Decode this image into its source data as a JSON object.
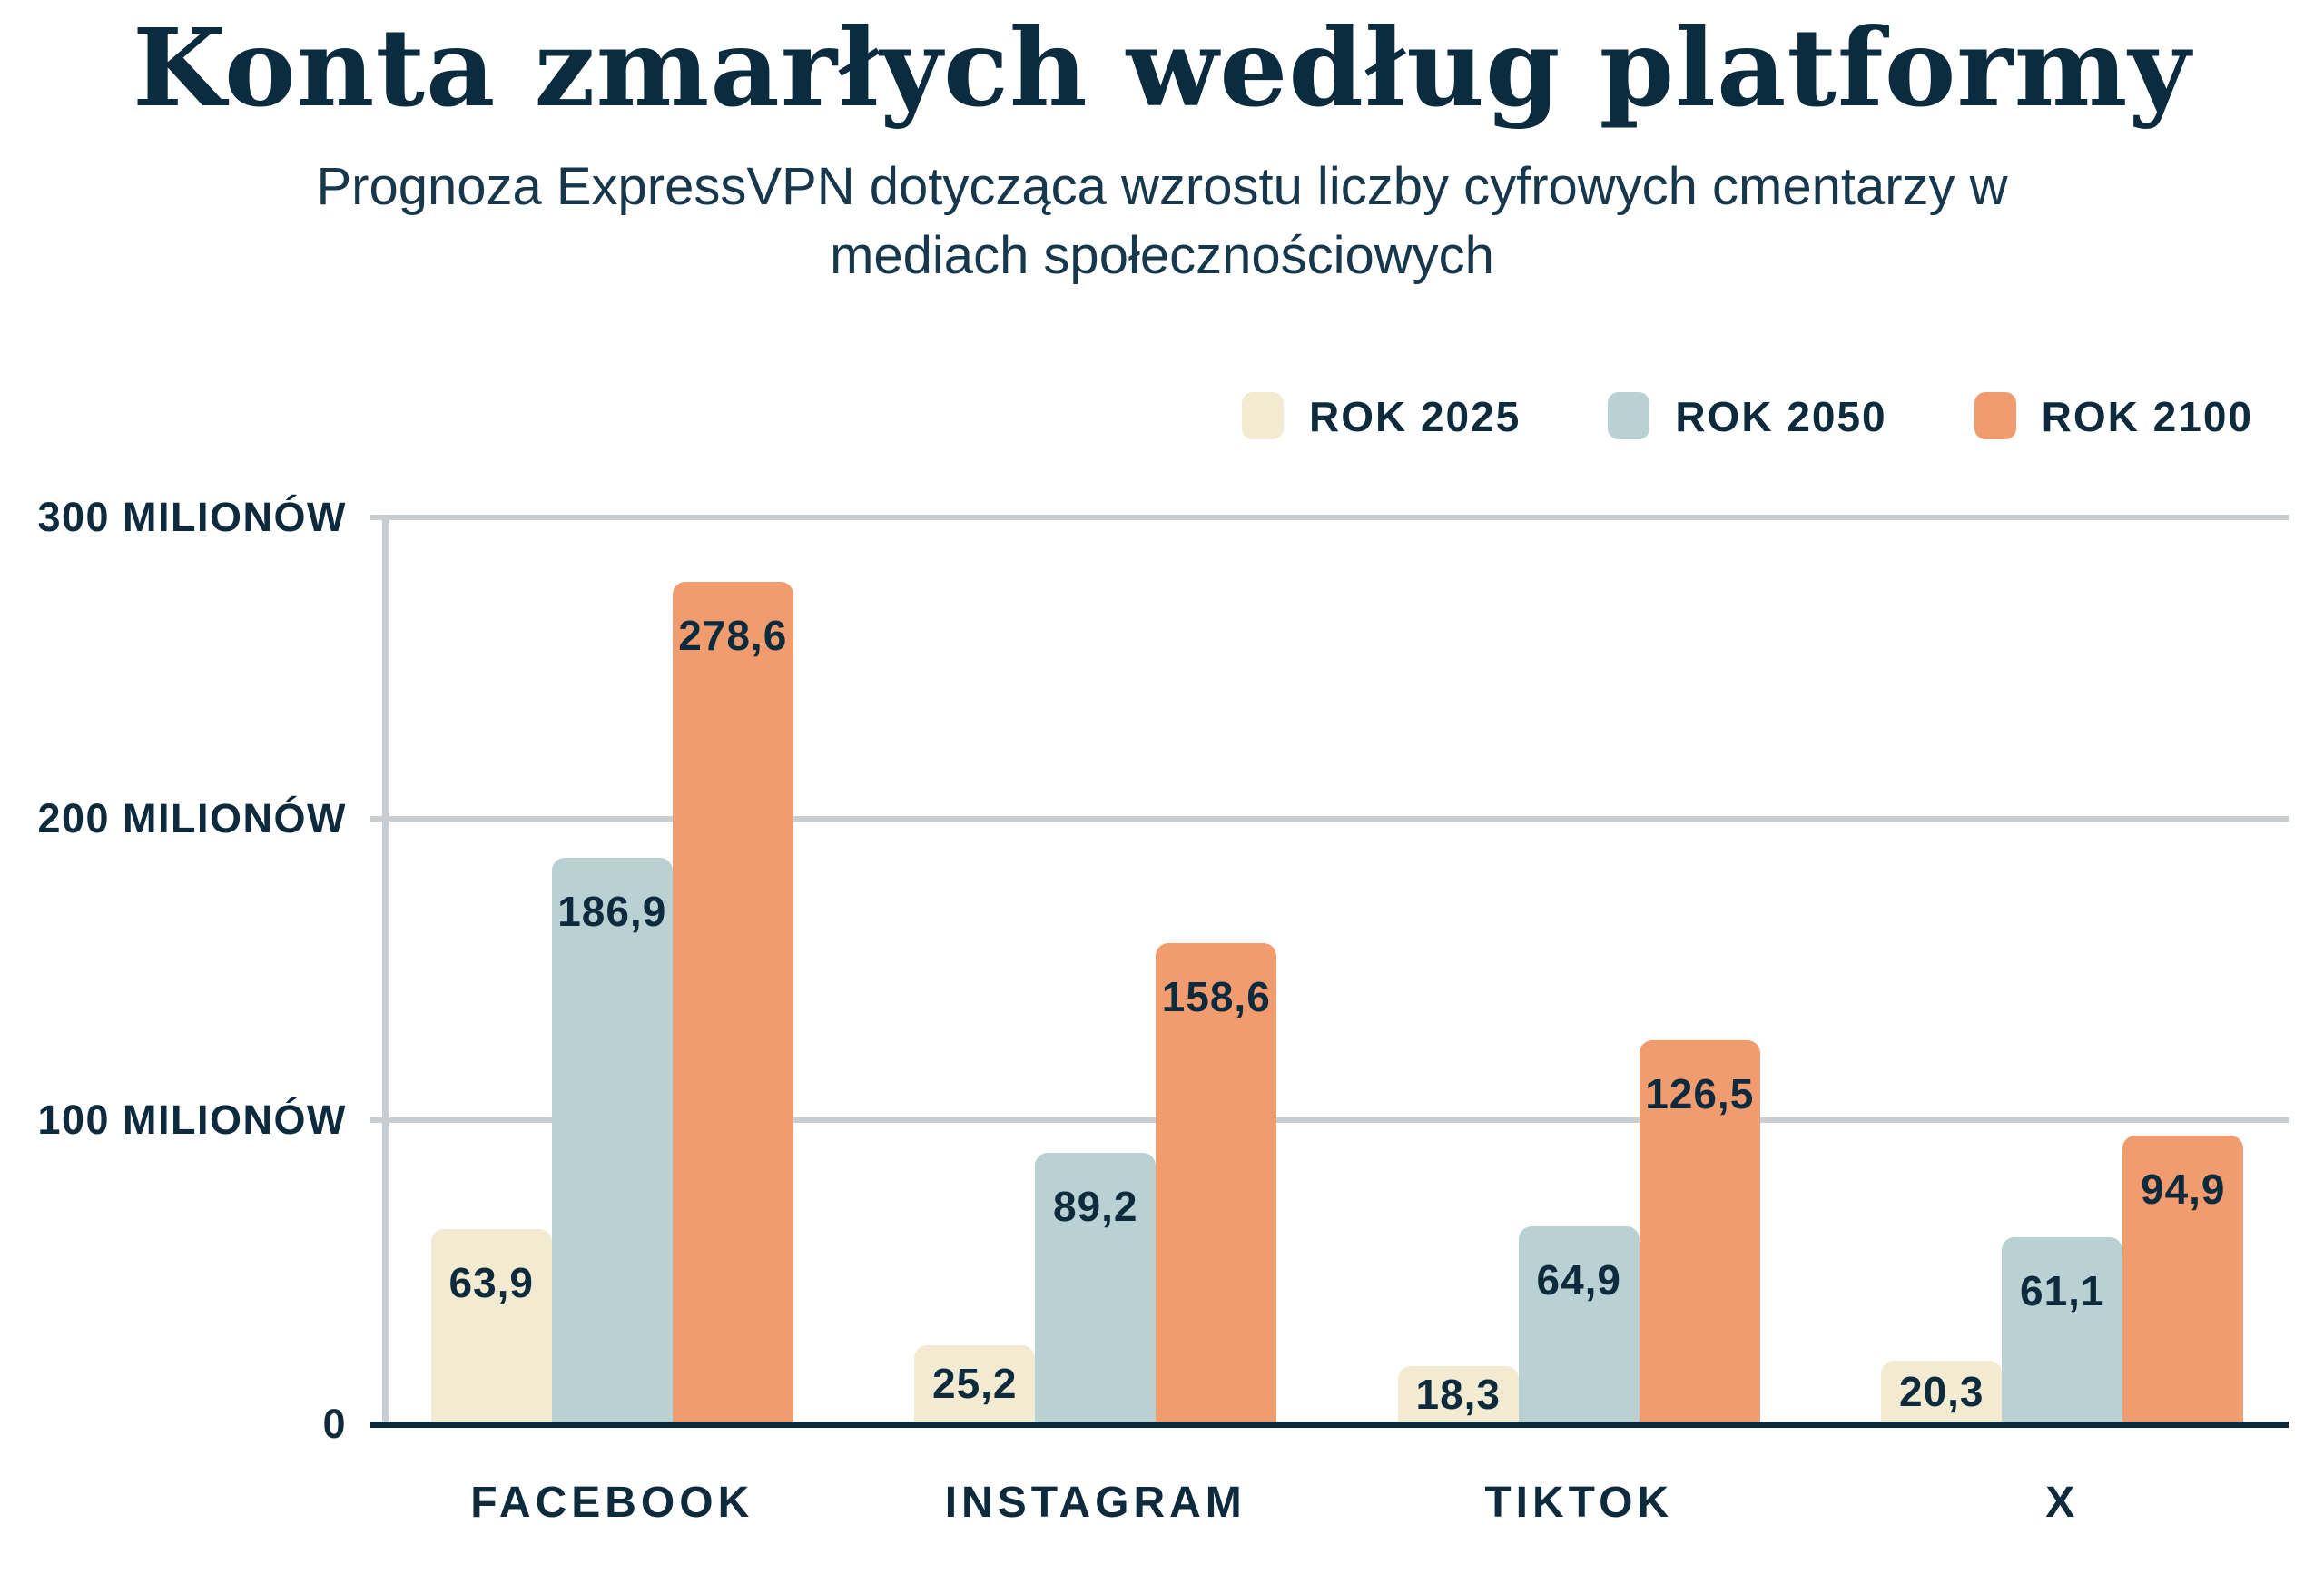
{
  "title": "Konta zmarłych według platformy",
  "subtitle": {
    "line1": "Prognoza ExpressVPN dotycząca wzrostu liczby cyfrowych cmentarzy w",
    "line2": "mediach społecznościowych"
  },
  "palette": {
    "navy_text": "#0E2B3E",
    "title_navy": "#0B2B3F",
    "grid_gray": "#C8CDD2",
    "baseline_navy": "#0E2B3E",
    "background": "#FFFFFF"
  },
  "chart_data": {
    "type": "bar",
    "categories": [
      "FACEBOOK",
      "INSTAGRAM",
      "TIKTOK",
      "X"
    ],
    "series": [
      {
        "name": "ROK 2025",
        "color": "#F2EBD2",
        "values": [
          63.9,
          25.2,
          18.3,
          20.3
        ],
        "labels": [
          "63,9",
          "25,2",
          "18,3",
          "20,3"
        ]
      },
      {
        "name": "ROK 2050",
        "color": "#B9D1D2",
        "values": [
          186.9,
          89.2,
          64.9,
          61.1
        ],
        "labels": [
          "186,9",
          "89,2",
          "64,9",
          "61,1"
        ]
      },
      {
        "name": "ROK 2100",
        "color": "#F19C6E",
        "values": [
          278.6,
          158.6,
          126.5,
          94.9
        ],
        "labels": [
          "278,6",
          "158,6",
          "126,5",
          "94,9"
        ]
      }
    ],
    "yticks": [
      {
        "value": 0,
        "label": "0"
      },
      {
        "value": 100,
        "label": "100 MILIONÓW"
      },
      {
        "value": 200,
        "label": "200 MILIONÓW"
      },
      {
        "value": 300,
        "label": "300 MILIONÓW"
      }
    ],
    "ylim": [
      0,
      300
    ],
    "grid": true,
    "legend_position": "top-right",
    "bars_rounded_top": true
  }
}
